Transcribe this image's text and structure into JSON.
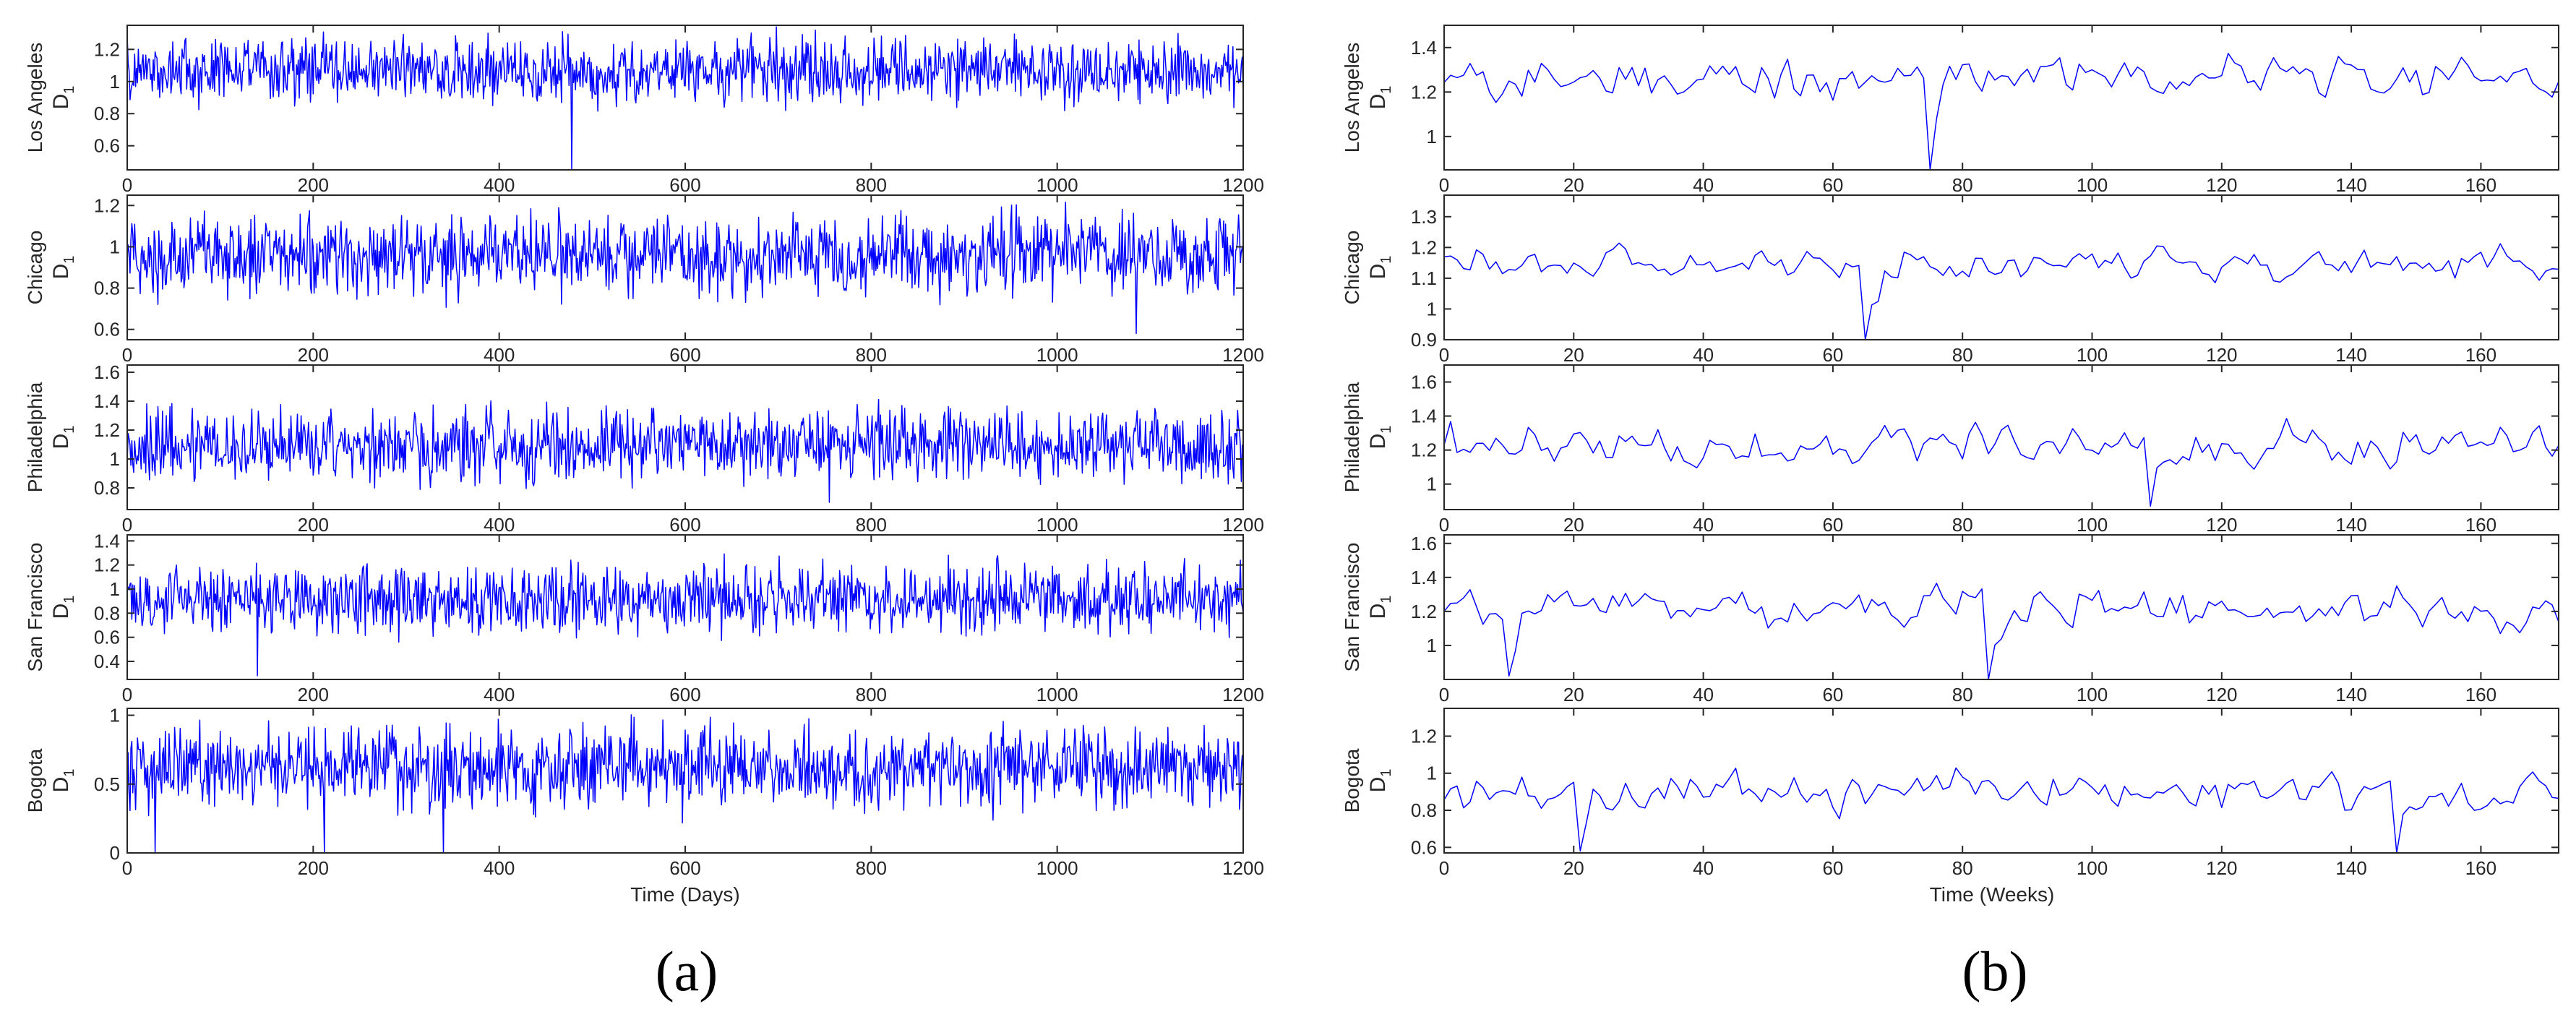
{
  "series_color": "#0000ff",
  "chart_data": [
    {
      "type": "line",
      "panel_label": "(a)",
      "xlabel": "Time (Days)",
      "xlim": [
        0,
        1200
      ],
      "xticks": [
        0,
        200,
        400,
        600,
        800,
        1000,
        1200
      ],
      "ylabel_symbol": "D",
      "ylabel_subscript": "1",
      "subplots": [
        {
          "city": "Los Angeles",
          "ylim": [
            0.45,
            1.35
          ],
          "yticks": [
            0.6,
            0.8,
            1,
            1.2
          ],
          "approx_mean": 1.07,
          "approx_amplitude": 0.3,
          "min_points": [
            {
              "x": 478,
              "y": 0.45
            }
          ],
          "n_points": 1200
        },
        {
          "city": "Chicago",
          "ylim": [
            0.55,
            1.25
          ],
          "yticks": [
            0.6,
            0.8,
            1,
            1.2
          ],
          "approx_mean": 0.96,
          "approx_amplitude": 0.28,
          "min_points": [
            {
              "x": 1085,
              "y": 0.58
            }
          ],
          "n_points": 1200
        },
        {
          "city": "Philadelphia",
          "ylim": [
            0.65,
            1.65
          ],
          "yticks": [
            0.8,
            1,
            1.2,
            1.4,
            1.6
          ],
          "approx_mean": 1.1,
          "approx_amplitude": 0.38,
          "min_points": [
            {
              "x": 755,
              "y": 0.7
            }
          ],
          "n_points": 1200
        },
        {
          "city": "San Francisco",
          "ylim": [
            0.25,
            1.45
          ],
          "yticks": [
            0.4,
            0.6,
            0.8,
            1,
            1.2,
            1.4
          ],
          "approx_mean": 0.92,
          "approx_amplitude": 0.42,
          "min_points": [
            {
              "x": 140,
              "y": 0.28
            }
          ],
          "n_points": 1200
        },
        {
          "city": "Bogota",
          "ylim": [
            0,
            1.05
          ],
          "yticks": [
            0,
            0.5,
            1
          ],
          "approx_mean": 0.62,
          "approx_amplitude": 0.42,
          "min_points": [
            {
              "x": 30,
              "y": 0
            },
            {
              "x": 212,
              "y": 0
            },
            {
              "x": 340,
              "y": 0
            }
          ],
          "n_points": 1200
        }
      ]
    },
    {
      "type": "line",
      "panel_label": "(b)",
      "xlabel": "Time (Weeks)",
      "xlim": [
        0,
        172
      ],
      "xticks": [
        0,
        20,
        40,
        60,
        80,
        100,
        120,
        140,
        160
      ],
      "ylabel_symbol": "D",
      "ylabel_subscript": "1",
      "subplots": [
        {
          "city": "Los Angeles",
          "ylim": [
            0.85,
            1.5
          ],
          "yticks": [
            1,
            1.2,
            1.4
          ],
          "approx_mean": 1.27,
          "approx_amplitude": 0.22,
          "min_points": [
            {
              "x": 75,
              "y": 0.85
            }
          ],
          "n_points": 172
        },
        {
          "city": "Chicago",
          "ylim": [
            0.9,
            1.37
          ],
          "yticks": [
            0.9,
            1,
            1.1,
            1.2,
            1.3
          ],
          "approx_mean": 1.15,
          "approx_amplitude": 0.14,
          "min_points": [
            {
              "x": 65,
              "y": 0.9
            }
          ],
          "n_points": 172
        },
        {
          "city": "Philadelphia",
          "ylim": [
            0.85,
            1.7
          ],
          "yticks": [
            1,
            1.2,
            1.4,
            1.6
          ],
          "approx_mean": 1.22,
          "approx_amplitude": 0.3,
          "min_points": [
            {
              "x": 109,
              "y": 0.87
            }
          ],
          "n_points": 172
        },
        {
          "city": "San Francisco",
          "ylim": [
            0.8,
            1.65
          ],
          "yticks": [
            1,
            1.2,
            1.4,
            1.6
          ],
          "approx_mean": 1.22,
          "approx_amplitude": 0.28,
          "min_points": [
            {
              "x": 10,
              "y": 0.82
            },
            {
              "x": 84,
              "y": 0.8
            }
          ],
          "n_points": 172
        },
        {
          "city": "Bogota",
          "ylim": [
            0.57,
            1.35
          ],
          "yticks": [
            0.6,
            0.8,
            1,
            1.2
          ],
          "approx_mean": 0.9,
          "approx_amplitude": 0.25,
          "min_points": [
            {
              "x": 21,
              "y": 0.58
            },
            {
              "x": 147,
              "y": 0.57
            }
          ],
          "n_points": 172
        }
      ]
    }
  ]
}
